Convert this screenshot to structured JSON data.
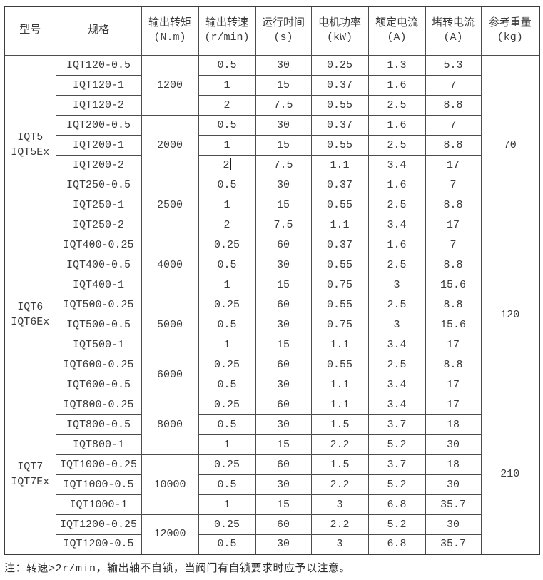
{
  "table": {
    "columns": [
      {
        "title": "型号",
        "sub": ""
      },
      {
        "title": "规格",
        "sub": ""
      },
      {
        "title": "输出转矩",
        "sub": "(N.m)"
      },
      {
        "title": "输出转速",
        "sub": "(r/min)"
      },
      {
        "title": "运行时间",
        "sub": "(s)"
      },
      {
        "title": "电机功率",
        "sub": "(kW)"
      },
      {
        "title": "额定电流",
        "sub": "(A)"
      },
      {
        "title": "堵转电流",
        "sub": "(A)"
      },
      {
        "title": "参考重量",
        "sub": "(kg)"
      }
    ],
    "groups": [
      {
        "model_lines": [
          "IQT5",
          "IQT5Ex"
        ],
        "weight": "70",
        "torque_groups": [
          {
            "torque": "1200",
            "rows": [
              {
                "spec": "IQT120-0.5",
                "speed": "0.5",
                "time": "30",
                "power": "0.25",
                "rated": "1.3",
                "stall": "5.3"
              },
              {
                "spec": "IQT120-1",
                "speed": "1",
                "time": "15",
                "power": "0.37",
                "rated": "1.6",
                "stall": "7"
              },
              {
                "spec": "IQT120-2",
                "speed": "2",
                "time": "7.5",
                "power": "0.55",
                "rated": "2.5",
                "stall": "8.8"
              }
            ]
          },
          {
            "torque": "2000",
            "rows": [
              {
                "spec": "IQT200-0.5",
                "speed": "0.5",
                "time": "30",
                "power": "0.37",
                "rated": "1.6",
                "stall": "7"
              },
              {
                "spec": "IQT200-1",
                "speed": "1",
                "time": "15",
                "power": "0.55",
                "rated": "2.5",
                "stall": "8.8"
              },
              {
                "spec": "IQT200-2",
                "speed": "2",
                "time": "7.5",
                "power": "1.1",
                "rated": "3.4",
                "stall": "17",
                "caret": true
              }
            ]
          },
          {
            "torque": "2500",
            "rows": [
              {
                "spec": "IQT250-0.5",
                "speed": "0.5",
                "time": "30",
                "power": "0.37",
                "rated": "1.6",
                "stall": "7"
              },
              {
                "spec": "IQT250-1",
                "speed": "1",
                "time": "15",
                "power": "0.55",
                "rated": "2.5",
                "stall": "8.8"
              },
              {
                "spec": "IQT250-2",
                "speed": "2",
                "time": "7.5",
                "power": "1.1",
                "rated": "3.4",
                "stall": "17"
              }
            ]
          }
        ]
      },
      {
        "model_lines": [
          "IQT6",
          "IQT6Ex"
        ],
        "weight": "120",
        "torque_groups": [
          {
            "torque": "4000",
            "rows": [
              {
                "spec": "IQT400-0.25",
                "speed": "0.25",
                "time": "60",
                "power": "0.37",
                "rated": "1.6",
                "stall": "7"
              },
              {
                "spec": "IQT400-0.5",
                "speed": "0.5",
                "time": "30",
                "power": "0.55",
                "rated": "2.5",
                "stall": "8.8"
              },
              {
                "spec": "IQT400-1",
                "speed": "1",
                "time": "15",
                "power": "0.75",
                "rated": "3",
                "stall": "15.6"
              }
            ]
          },
          {
            "torque": "5000",
            "rows": [
              {
                "spec": "IQT500-0.25",
                "speed": "0.25",
                "time": "60",
                "power": "0.55",
                "rated": "2.5",
                "stall": "8.8"
              },
              {
                "spec": "IQT500-0.5",
                "speed": "0.5",
                "time": "30",
                "power": "0.75",
                "rated": "3",
                "stall": "15.6"
              },
              {
                "spec": "IQT500-1",
                "speed": "1",
                "time": "15",
                "power": "1.1",
                "rated": "3.4",
                "stall": "17"
              }
            ]
          },
          {
            "torque": "6000",
            "rows": [
              {
                "spec": "IQT600-0.25",
                "speed": "0.25",
                "time": "60",
                "power": "0.55",
                "rated": "2.5",
                "stall": "8.8"
              },
              {
                "spec": "IQT600-0.5",
                "speed": "0.5",
                "time": "30",
                "power": "1.1",
                "rated": "3.4",
                "stall": "17"
              }
            ]
          }
        ]
      },
      {
        "model_lines": [
          "IQT7",
          "IQT7Ex"
        ],
        "weight": "210",
        "torque_groups": [
          {
            "torque": "8000",
            "rows": [
              {
                "spec": "IQT800-0.25",
                "speed": "0.25",
                "time": "60",
                "power": "1.1",
                "rated": "3.4",
                "stall": "17"
              },
              {
                "spec": "IQT800-0.5",
                "speed": "0.5",
                "time": "30",
                "power": "1.5",
                "rated": "3.7",
                "stall": "18"
              },
              {
                "spec": "IQT800-1",
                "speed": "1",
                "time": "15",
                "power": "2.2",
                "rated": "5.2",
                "stall": "30"
              }
            ]
          },
          {
            "torque": "10000",
            "rows": [
              {
                "spec": "IQT1000-0.25",
                "speed": "0.25",
                "time": "60",
                "power": "1.5",
                "rated": "3.7",
                "stall": "18"
              },
              {
                "spec": "IQT1000-0.5",
                "speed": "0.5",
                "time": "30",
                "power": "2.2",
                "rated": "5.2",
                "stall": "30"
              },
              {
                "spec": "IQT1000-1",
                "speed": "1",
                "time": "15",
                "power": "3",
                "rated": "6.8",
                "stall": "35.7"
              }
            ]
          },
          {
            "torque": "12000",
            "rows": [
              {
                "spec": "IQT1200-0.25",
                "speed": "0.25",
                "time": "60",
                "power": "2.2",
                "rated": "5.2",
                "stall": "30"
              },
              {
                "spec": "IQT1200-0.5",
                "speed": "0.5",
                "time": "30",
                "power": "3",
                "rated": "6.8",
                "stall": "35.7"
              }
            ]
          }
        ]
      }
    ]
  },
  "note": "注：转速>2r/min，输出轴不自锁，当阀门有自锁要求时应予以注意。"
}
